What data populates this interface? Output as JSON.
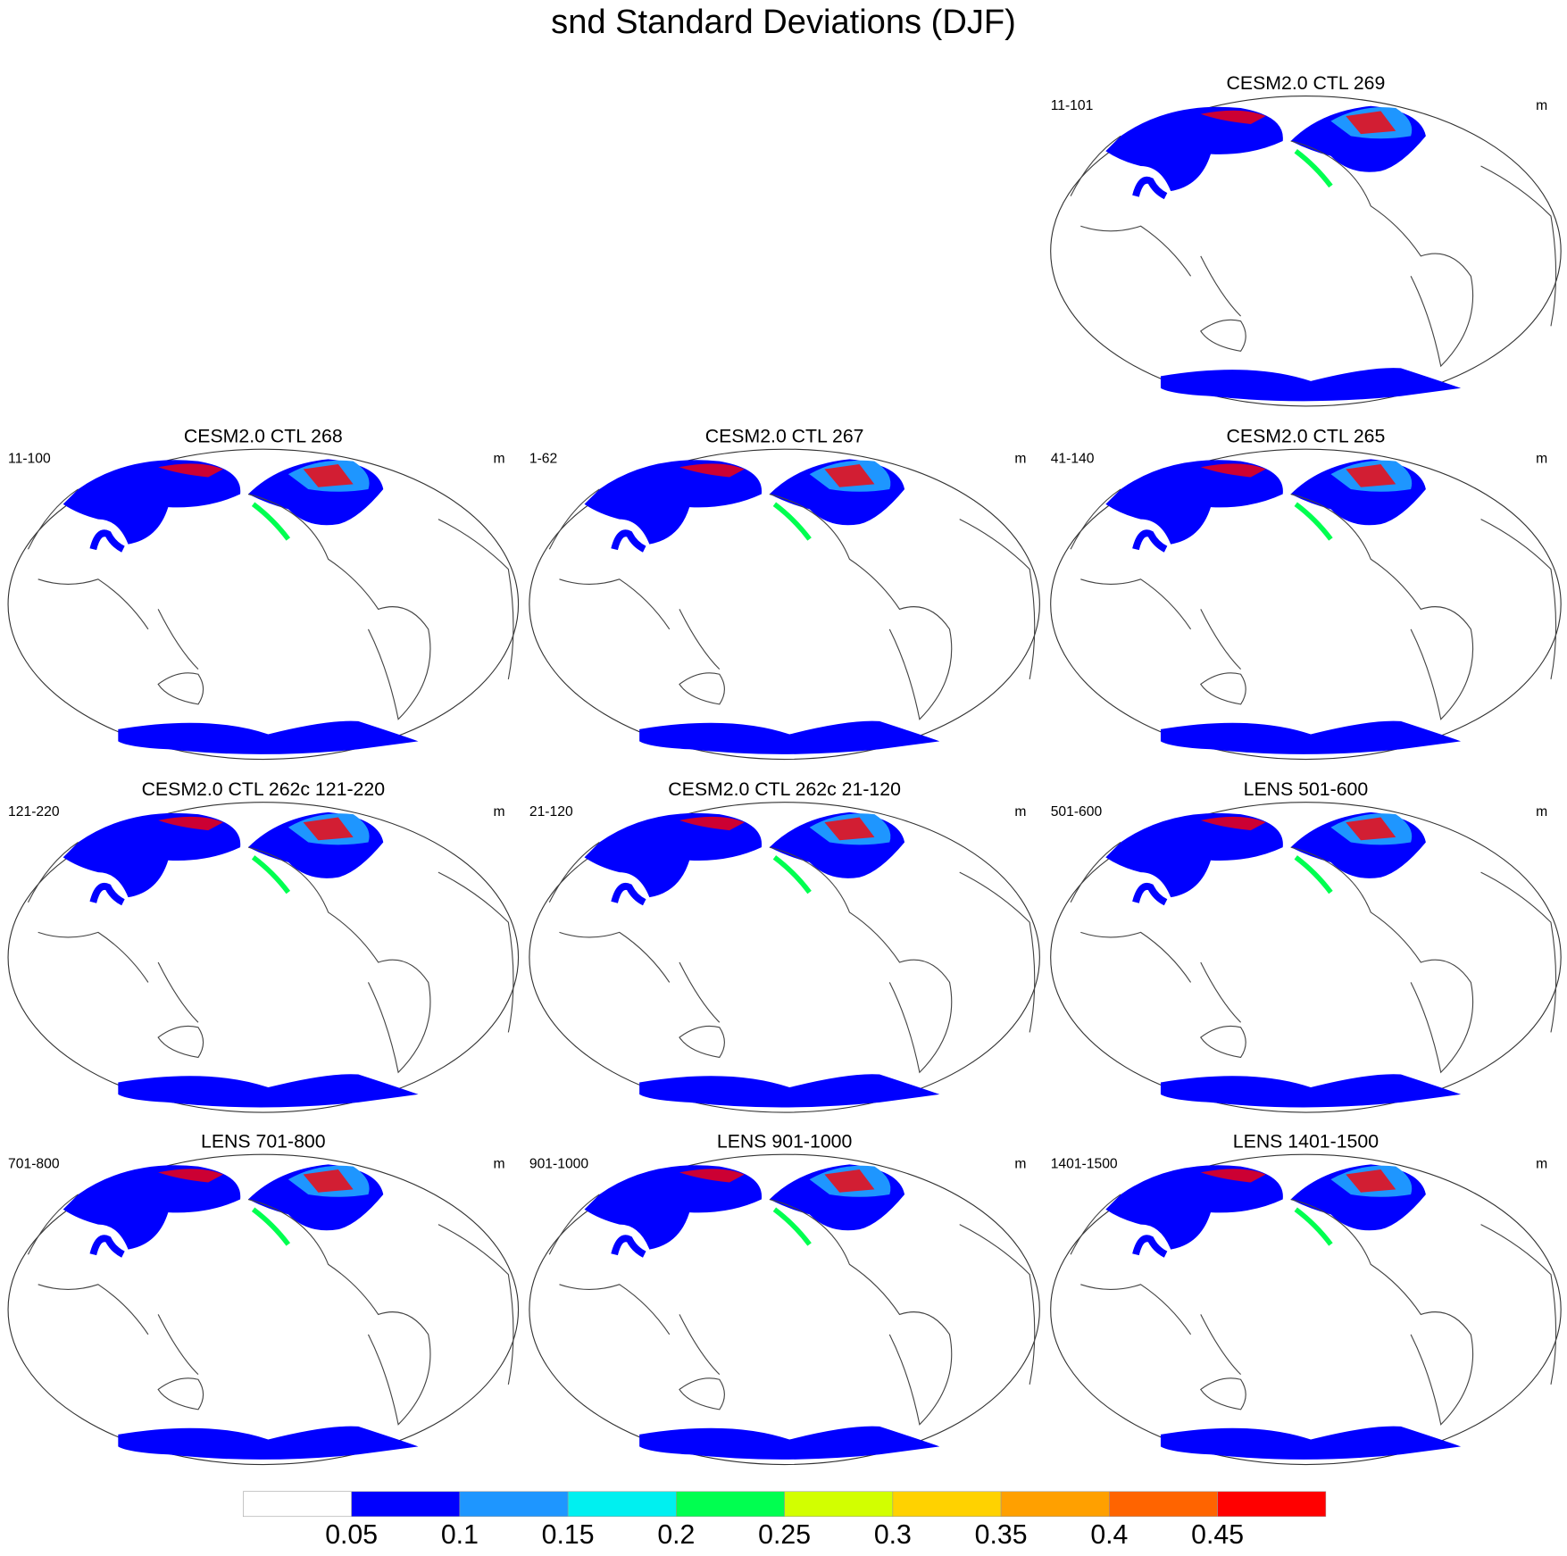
{
  "title": "snd Standard Deviations (DJF)",
  "panels": [
    {
      "title": "CESM2.0 CTL 269",
      "left": "11-101",
      "right": "m"
    },
    {
      "title": "CESM2.0 CTL 268",
      "left": "11-100",
      "right": "m"
    },
    {
      "title": "CESM2.0 CTL 267",
      "left": "1-62",
      "right": "m"
    },
    {
      "title": "CESM2.0 CTL 265",
      "left": "41-140",
      "right": "m"
    },
    {
      "title": "CESM2.0 CTL 262c 121-220",
      "left": "121-220",
      "right": "m"
    },
    {
      "title": "CESM2.0 CTL 262c 21-120",
      "left": "21-120",
      "right": "m"
    },
    {
      "title": "LENS 501-600",
      "left": "501-600",
      "right": "m"
    },
    {
      "title": "LENS 701-800",
      "left": "701-800",
      "right": "m"
    },
    {
      "title": "LENS 901-1000",
      "left": "901-1000",
      "right": "m"
    },
    {
      "title": "LENS 1401-1500",
      "left": "1401-1500",
      "right": "m"
    }
  ],
  "colorbar": {
    "levels": [
      0.05,
      0.1,
      0.15,
      0.2,
      0.25,
      0.3,
      0.35,
      0.4,
      0.45
    ],
    "colors": [
      "#ffffff",
      "#0000ff",
      "#1e96ff",
      "#00f0f0",
      "#00ff50",
      "#d2ff00",
      "#ffd200",
      "#ffa000",
      "#ff6400",
      "#ff0000"
    ]
  }
}
